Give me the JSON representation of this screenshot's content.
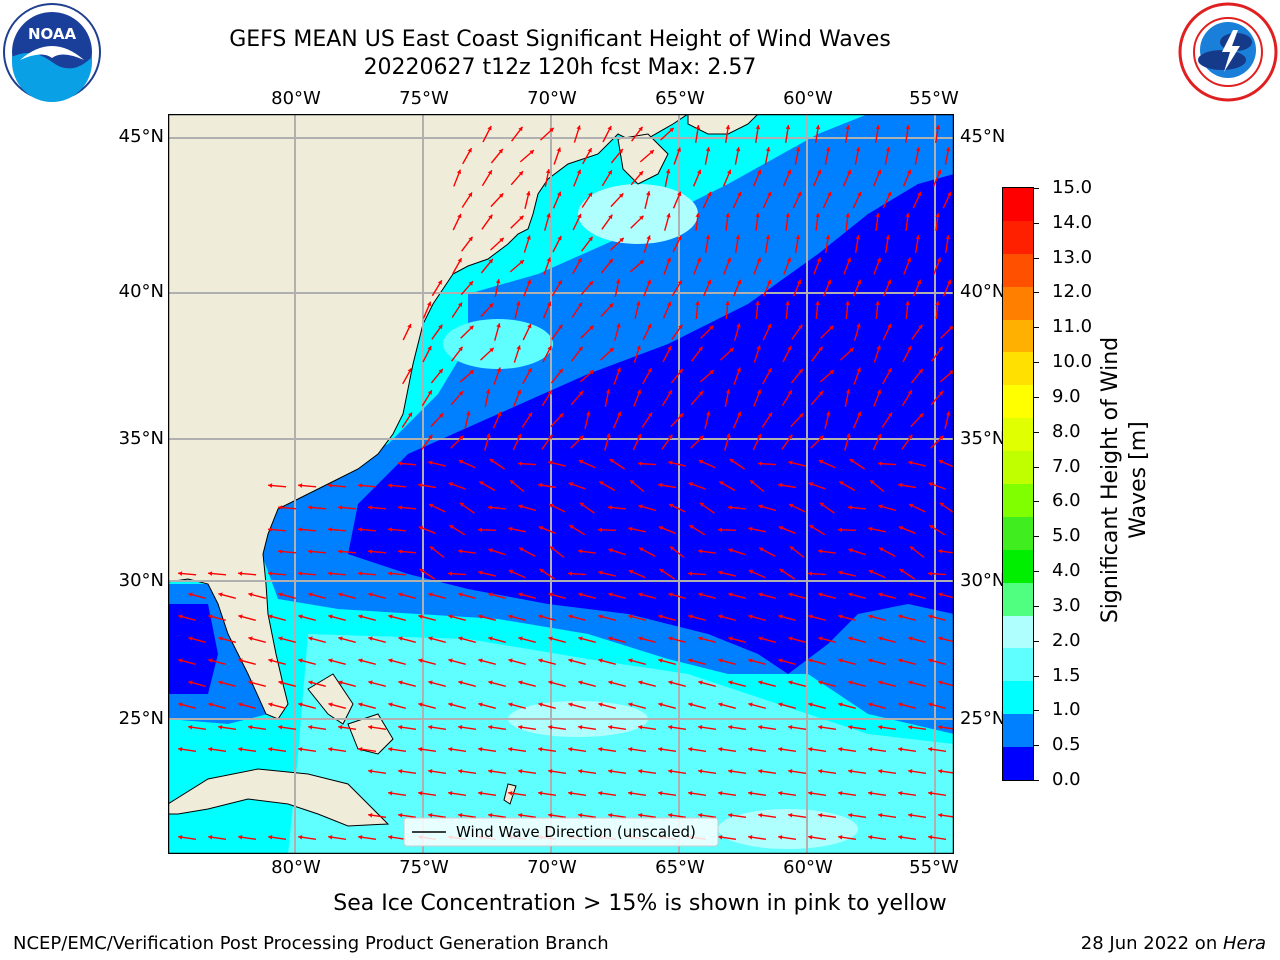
{
  "header": {
    "title_line1": "GEFS MEAN US East Coast Significant Height of Wind Waves",
    "title_line2": "20220627 t12z 120h fcst   Max: 2.57"
  },
  "logos": {
    "left": {
      "text": "NOAA",
      "icon": "noaa-logo-icon"
    },
    "right": {
      "icon": "nws-logo-icon"
    }
  },
  "map": {
    "lon_labels": [
      "80°W",
      "75°W",
      "70°W",
      "65°W",
      "60°W",
      "55°W"
    ],
    "lat_labels": [
      "45°N",
      "40°N",
      "35°N",
      "30°N",
      "25°N"
    ],
    "legend_label": "Wind Wave Direction (unscaled)",
    "colors": {
      "land": "#efedda",
      "band_0_0p5": "#0000ff",
      "band_0p5_1": "#0080ff",
      "band_1_1p5": "#00ffff",
      "band_1p5_2": "#60ffff",
      "band_2_3": "#b0ffff",
      "arrow": "#ff0000",
      "grid": "#b0b0b0"
    }
  },
  "colorbar": {
    "title_line1": "Significant Height of Wind",
    "title_line2": "Waves [m]",
    "tick_labels": [
      "15.0",
      "14.0",
      "13.0",
      "12.0",
      "11.0",
      "10.0",
      "9.0",
      "8.0",
      "7.0",
      "6.0",
      "5.0",
      "4.0",
      "3.0",
      "2.0",
      "1.5",
      "1.0",
      "0.5",
      "0.0"
    ],
    "colors_top_to_bottom": [
      "#ff0000",
      "#ff2000",
      "#ff5000",
      "#ff8000",
      "#ffb000",
      "#ffe000",
      "#ffff00",
      "#e0ff00",
      "#c0ff00",
      "#80ff00",
      "#40ee20",
      "#00ee00",
      "#50ff80",
      "#b0ffff",
      "#60ffff",
      "#00ffff",
      "#0080ff",
      "#0000ff"
    ]
  },
  "footer": {
    "note": "Sea Ice Concentration > 15% is shown in pink to yellow",
    "left": "NCEP/EMC/Verification Post Processing Product Generation Branch",
    "right_date": "28 Jun 2022 on ",
    "right_machine": "Hera"
  }
}
